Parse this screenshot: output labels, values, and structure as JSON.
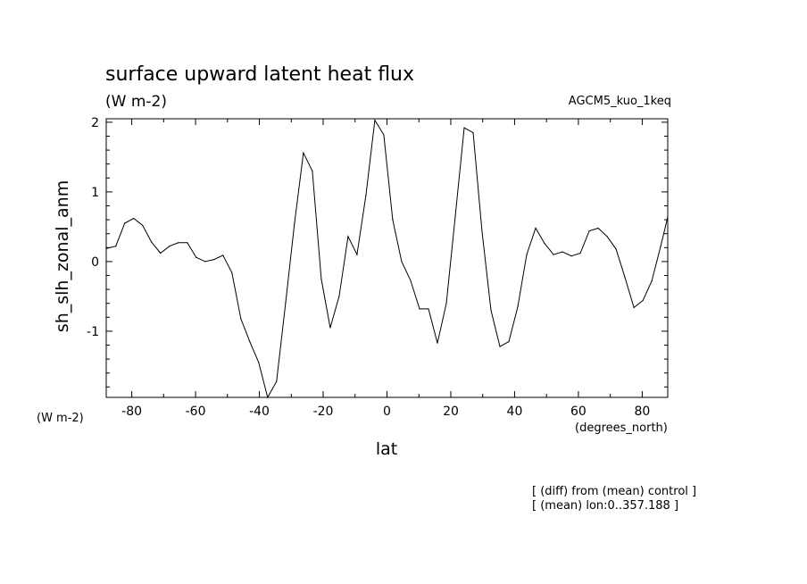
{
  "chart_data": {
    "type": "line",
    "title": "surface upward latent heat flux",
    "units": "(W m-2)",
    "experiment": "AGCM5_kuo_1keq",
    "ylabel": "sh_slh_zonal_anm",
    "yunits": "(W m-2)",
    "xlabel": "lat",
    "xunits": "(degrees_north)",
    "notes": [
      "[ (diff) from (mean) control ]",
      "[ (mean) lon:0..357.188 ]"
    ],
    "xlim": [
      -88,
      88
    ],
    "ylim": [
      -1.95,
      2.05
    ],
    "xticks": [
      -80,
      -60,
      -40,
      -20,
      0,
      20,
      40,
      60,
      80
    ],
    "xtick_labels": [
      "-80",
      "-60",
      "-40",
      "-20",
      "0",
      "20",
      "40",
      "60",
      "80"
    ],
    "yticks": [
      -1,
      0,
      1,
      2
    ],
    "ytick_labels": [
      "-1",
      "0",
      "1",
      "2"
    ],
    "grid": false,
    "series": [
      {
        "x": [
          -87.8,
          -85.0,
          -82.2,
          -79.4,
          -76.6,
          -73.8,
          -71.0,
          -68.2,
          -65.4,
          -62.6,
          -59.8,
          -57.0,
          -54.2,
          -51.4,
          -48.6,
          -45.8,
          -43.0,
          -40.2,
          -37.4,
          -34.6,
          -31.8,
          -29.0,
          -26.2,
          -23.4,
          -20.6,
          -17.8,
          -15.0,
          -12.2,
          -9.4,
          -6.6,
          -3.8,
          -1.0,
          1.8,
          4.6,
          7.4,
          10.2,
          13.0,
          15.8,
          18.6,
          21.4,
          24.2,
          27.0,
          29.8,
          32.6,
          35.4,
          38.2,
          41.0,
          43.8,
          46.6,
          49.4,
          52.2,
          55.0,
          57.8,
          60.6,
          63.4,
          66.2,
          69.0,
          71.8,
          74.6,
          77.4,
          80.2,
          83.0,
          85.8,
          88.0
        ],
        "y": [
          0.19,
          0.22,
          0.55,
          0.62,
          0.52,
          0.28,
          0.12,
          0.22,
          0.27,
          0.27,
          0.06,
          0.0,
          0.03,
          0.09,
          -0.16,
          -0.82,
          -1.15,
          -1.45,
          -1.95,
          -1.72,
          -0.6,
          0.55,
          1.56,
          1.3,
          -0.25,
          -0.95,
          -0.5,
          0.36,
          0.1,
          0.95,
          2.03,
          1.82,
          0.6,
          0.0,
          -0.27,
          -0.68,
          -0.68,
          -1.17,
          -0.6,
          0.65,
          1.92,
          1.85,
          0.43,
          -0.7,
          -1.22,
          -1.15,
          -0.65,
          0.1,
          0.48,
          0.26,
          0.1,
          0.14,
          0.08,
          0.12,
          0.44,
          0.48,
          0.36,
          0.18,
          -0.23,
          -0.66,
          -0.56,
          -0.28,
          0.22,
          0.64
        ]
      }
    ]
  }
}
